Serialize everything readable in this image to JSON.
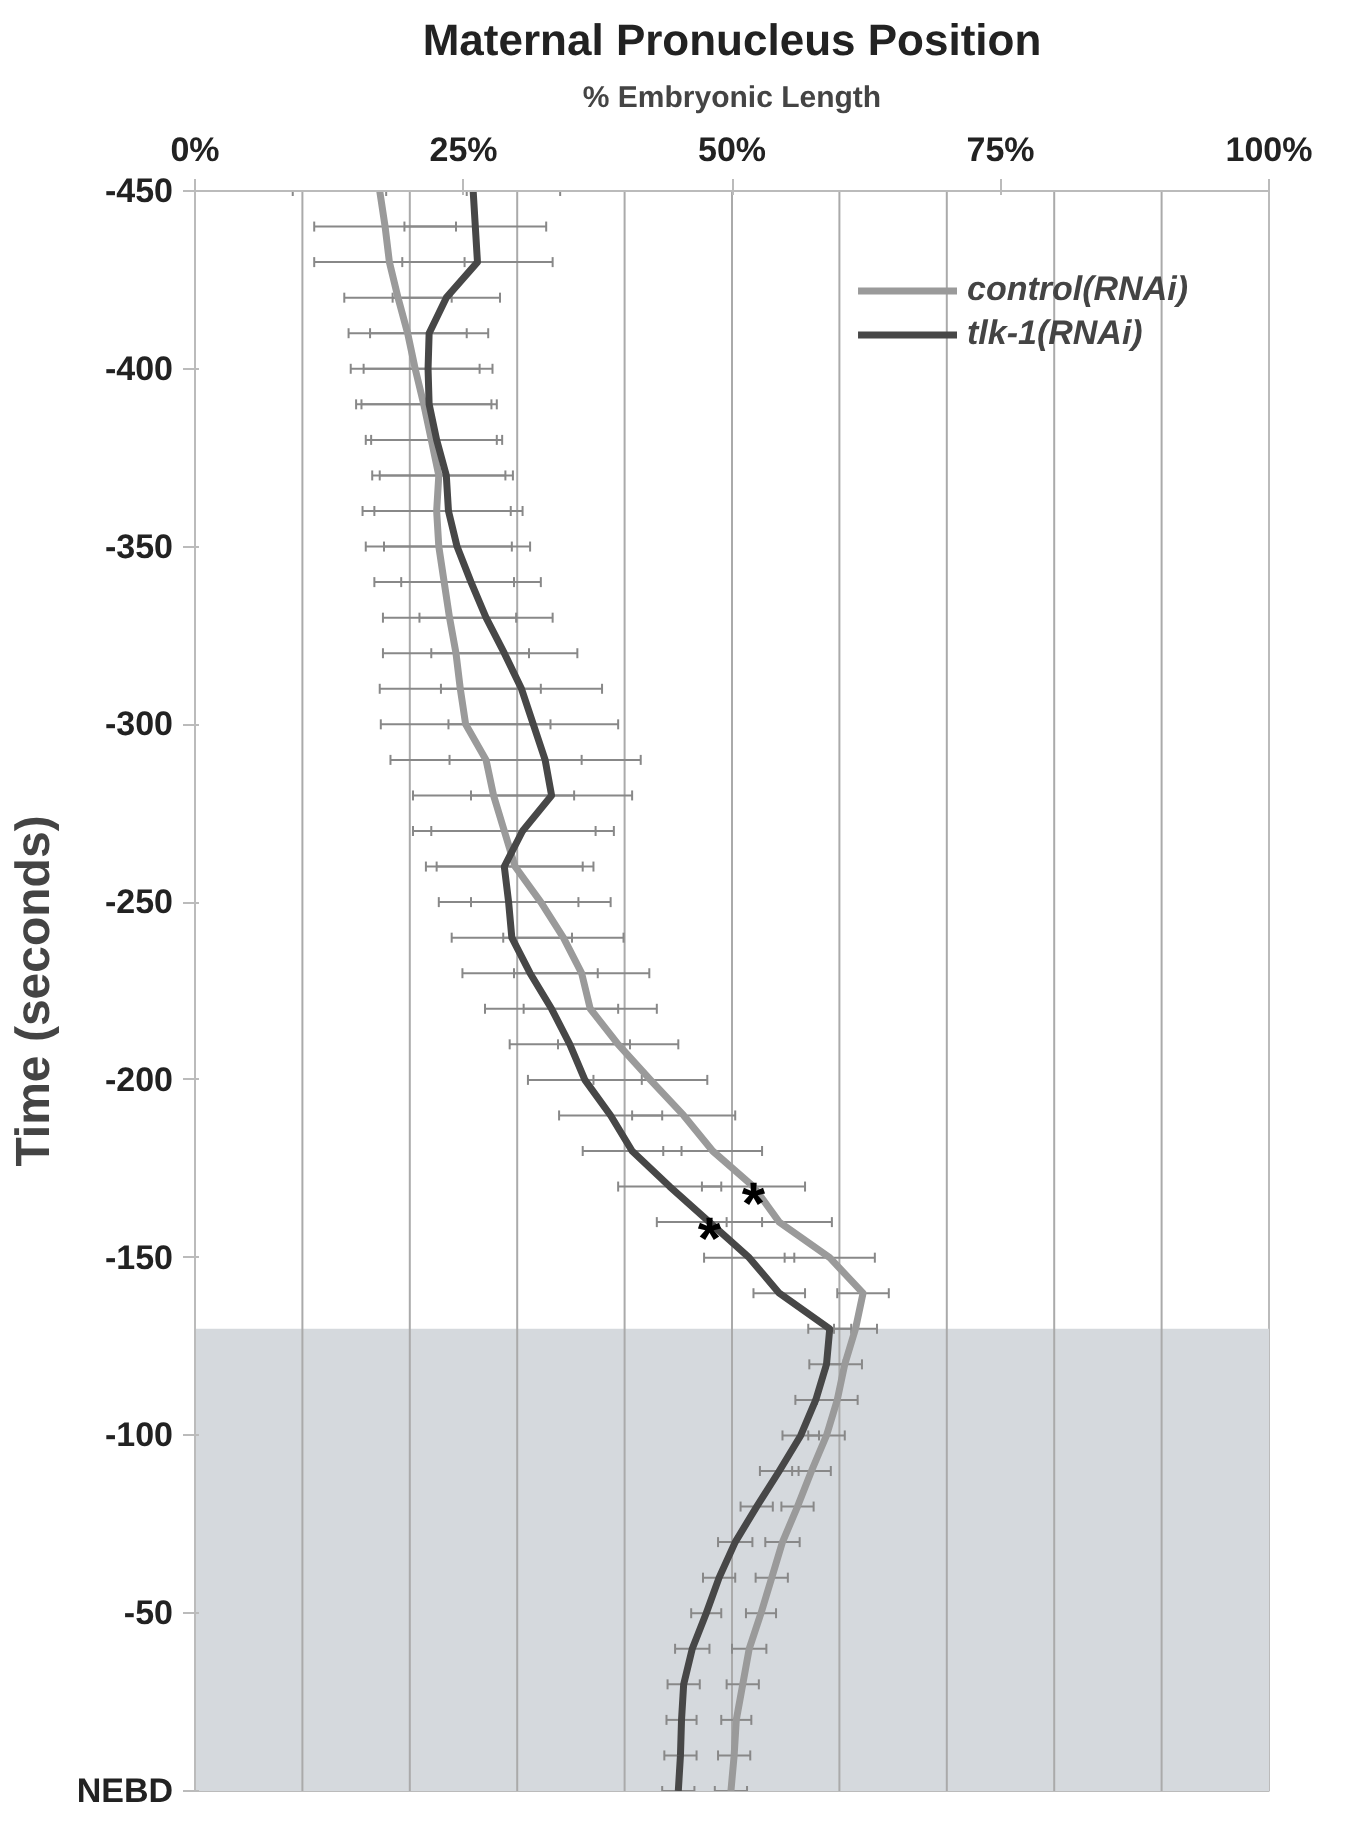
{
  "chart_data": {
    "type": "line",
    "title": "Maternal Pronucleus Position",
    "xlabel": "% Embryonic Length",
    "ylabel": "Time (seconds)",
    "orientation": "horizontal",
    "x": [
      -450,
      -440,
      -430,
      -420,
      -410,
      -400,
      -390,
      -380,
      -370,
      -360,
      -350,
      -340,
      -330,
      -320,
      -310,
      -300,
      -290,
      -280,
      -270,
      -260,
      -250,
      -240,
      -230,
      -220,
      -210,
      -200,
      -190,
      -180,
      -170,
      -160,
      -150,
      -140,
      -130,
      -120,
      -110,
      -100,
      -90,
      -80,
      -70,
      -60,
      -50,
      -40,
      -30,
      -20,
      -10,
      0
    ],
    "series": [
      {
        "name": "control(RNAi)",
        "color": "#9a9a9a",
        "values": [
          17.2,
          17.7,
          18.1,
          18.9,
          19.8,
          20.5,
          21.3,
          22.0,
          22.7,
          22.5,
          22.7,
          23.2,
          23.7,
          24.3,
          24.7,
          25.2,
          27.1,
          27.8,
          28.8,
          29.8,
          32.2,
          34.3,
          36.0,
          36.8,
          39.4,
          42.4,
          45.5,
          48.2,
          52.0,
          54.4,
          59.1,
          62.2,
          61.5,
          60.5,
          59.8,
          58.8,
          57.4,
          56.1,
          54.7,
          53.7,
          52.7,
          51.6,
          51.0,
          50.4,
          50.2,
          49.9
        ],
        "errors": [
          8.1,
          6.6,
          7.0,
          5.0,
          5.5,
          6.0,
          6.3,
          6.1,
          6.2,
          6.9,
          6.8,
          6.5,
          6.2,
          6.8,
          7.5,
          7.9,
          8.9,
          7.5,
          8.5,
          7.3,
          6.5,
          5.6,
          6.3,
          6.2,
          5.6,
          5.3,
          4.8,
          4.6,
          4.8,
          4.9,
          4.2,
          2.4,
          2.0,
          1.6,
          1.9,
          1.7,
          1.8,
          1.5,
          1.6,
          1.5,
          1.4,
          1.6,
          1.5,
          1.4,
          1.5,
          1.5
        ]
      },
      {
        "name": "tlk-1(RNAi)",
        "color": "#474747",
        "values": [
          25.9,
          26.1,
          26.3,
          23.4,
          21.8,
          21.7,
          21.8,
          22.5,
          23.4,
          23.6,
          24.4,
          25.7,
          27.1,
          28.8,
          30.4,
          31.5,
          32.6,
          33.2,
          30.5,
          28.8,
          29.2,
          29.5,
          31.2,
          33.2,
          34.9,
          36.3,
          38.7,
          40.7,
          44.2,
          47.9,
          51.6,
          54.4,
          59.1,
          58.8,
          57.8,
          56.4,
          54.4,
          52.3,
          50.3,
          48.8,
          47.6,
          46.3,
          45.5,
          45.3,
          45.2,
          45.0
        ],
        "errors": [
          8.1,
          6.6,
          7.0,
          5.0,
          5.5,
          6.0,
          6.3,
          6.1,
          6.2,
          6.9,
          6.8,
          6.5,
          6.2,
          6.8,
          7.5,
          7.9,
          8.9,
          7.5,
          8.5,
          7.3,
          6.5,
          5.6,
          6.3,
          6.2,
          5.6,
          5.3,
          4.8,
          4.6,
          4.8,
          4.9,
          4.2,
          2.4,
          2.0,
          1.6,
          1.9,
          1.7,
          1.8,
          1.5,
          1.6,
          1.5,
          1.4,
          1.6,
          1.5,
          1.4,
          1.5,
          1.5
        ]
      }
    ],
    "xlim": [
      0,
      100
    ],
    "xticks": [
      {
        "value": 0,
        "label": "0%"
      },
      {
        "value": 25,
        "label": "25%"
      },
      {
        "value": 50,
        "label": "50%"
      },
      {
        "value": 75,
        "label": "75%"
      },
      {
        "value": 100,
        "label": "100%"
      }
    ],
    "ylim": [
      0,
      -450
    ],
    "yticks": [
      -450,
      -400,
      -350,
      -300,
      -250,
      -200,
      -150,
      -100,
      -50,
      {
        "value": 0,
        "label": "NEBD"
      }
    ],
    "ref_lines": [
      {
        "axis": "x",
        "value": 10,
        "label": null
      },
      {
        "axis": "x",
        "value": 20,
        "label": null
      },
      {
        "axis": "x",
        "value": 30,
        "label": null
      },
      {
        "axis": "x",
        "value": 40,
        "label": null
      },
      {
        "axis": "x",
        "value": 50,
        "label": null
      },
      {
        "axis": "x",
        "value": 60,
        "label": null
      },
      {
        "axis": "x",
        "value": 70,
        "label": null
      },
      {
        "axis": "x",
        "value": 80,
        "label": null
      },
      {
        "axis": "x",
        "value": 90,
        "label": null
      }
    ],
    "bands": [
      {
        "axis": "y",
        "from": -130,
        "to": 0,
        "label": null,
        "color": "#d5d9dd"
      }
    ],
    "annotations": [
      {
        "text": "*",
        "x": 52.0,
        "y": -170
      },
      {
        "text": "*",
        "x": 47.9,
        "y": -160
      }
    ],
    "legend": "top right",
    "line_style": "solid",
    "marker": "none"
  }
}
